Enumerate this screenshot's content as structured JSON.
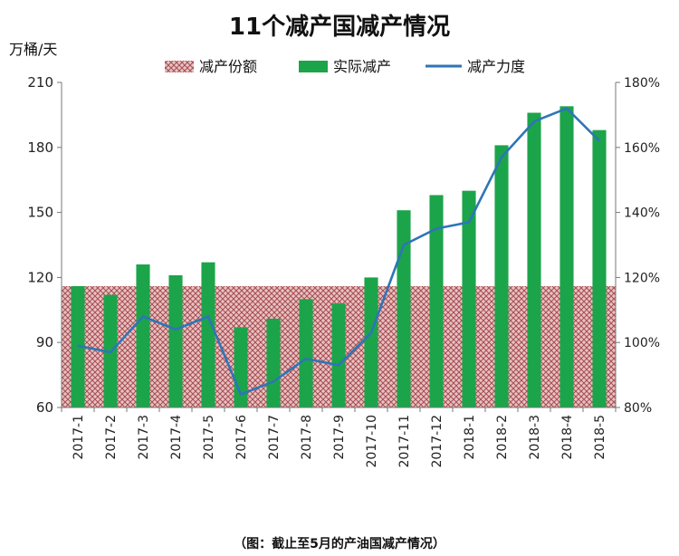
{
  "chart_data": {
    "type": "bar",
    "title": "11个减产国减产情况",
    "y_unit_label": "万桶/天",
    "categories": [
      "2017-1",
      "2017-2",
      "2017-3",
      "2017-4",
      "2017-5",
      "2017-6",
      "2017-7",
      "2017-8",
      "2017-9",
      "2017-10",
      "2017-11",
      "2017-12",
      "2018-1",
      "2018-2",
      "2018-3",
      "2018-4",
      "2018-5"
    ],
    "series": [
      {
        "name": "减产份额",
        "kind": "band",
        "value": 116,
        "axis": "left",
        "color": "#a94b50"
      },
      {
        "name": "实际减产",
        "kind": "bar",
        "axis": "left",
        "color": "#1ca44a",
        "values": [
          116,
          112,
          126,
          121,
          127,
          97,
          101,
          110,
          108,
          120,
          151,
          158,
          160,
          181,
          196,
          199,
          188
        ]
      },
      {
        "name": "减产力度",
        "kind": "line",
        "axis": "right",
        "color": "#2e75b6",
        "values": [
          99,
          97,
          108,
          104,
          108,
          84,
          88,
          95,
          93,
          103,
          130,
          135,
          137,
          157,
          168,
          172,
          162
        ]
      }
    ],
    "ylim_left": [
      60,
      210
    ],
    "yticks_left": [
      60,
      90,
      120,
      150,
      180,
      210
    ],
    "ylim_right": [
      80,
      180
    ],
    "yticks_right": [
      "80%",
      "100%",
      "120%",
      "140%",
      "160%",
      "180%"
    ],
    "legend_position": "top"
  },
  "caption": "（图：截止至5月的产油国减产情况）"
}
